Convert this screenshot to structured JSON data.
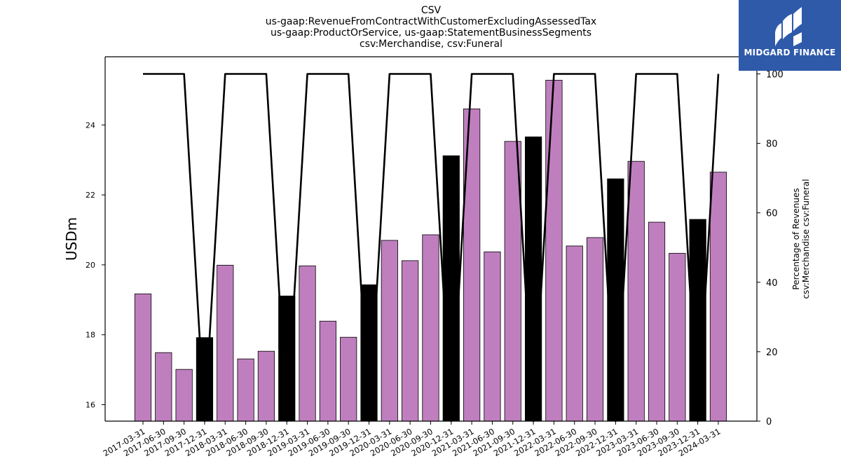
{
  "title_lines": [
    "CSV",
    "us-gaap:RevenueFromContractWithCustomerExcludingAssessedTax",
    "us-gaap:ProductOrService, us-gaap:StatementBusinessSegments",
    "csv:Merchandise, csv:Funeral"
  ],
  "logo": {
    "text": "MIDGARD FINANCE",
    "background": "#2f5aaa"
  },
  "chart_data": {
    "type": "bar",
    "categories": [
      "2017-03-31",
      "2017-06-30",
      "2017-09-30",
      "2017-12-31",
      "2018-03-31",
      "2018-06-30",
      "2018-09-30",
      "2018-12-31",
      "2019-03-31",
      "2019-06-30",
      "2019-09-30",
      "2019-12-31",
      "2020-03-31",
      "2020-06-30",
      "2020-09-30",
      "2020-12-31",
      "2021-03-31",
      "2021-06-30",
      "2021-09-30",
      "2021-12-31",
      "2022-03-31",
      "2022-06-30",
      "2022-09-30",
      "2022-12-31",
      "2023-03-31",
      "2023-06-30",
      "2023-09-30",
      "2023-12-31",
      "2024-03-31"
    ],
    "values": [
      19.17,
      17.49,
      17.01,
      17.92,
      19.99,
      17.31,
      17.53,
      19.11,
      19.97,
      18.39,
      17.93,
      19.43,
      20.7,
      20.12,
      20.86,
      23.12,
      24.46,
      20.37,
      23.53,
      23.66,
      25.28,
      20.54,
      20.78,
      22.46,
      22.96,
      21.22,
      20.33,
      21.3,
      22.65
    ],
    "bar_colors": [
      "#bf7fbf",
      "#bf7fbf",
      "#bf7fbf",
      "#000000",
      "#bf7fbf",
      "#bf7fbf",
      "#bf7fbf",
      "#000000",
      "#bf7fbf",
      "#bf7fbf",
      "#bf7fbf",
      "#000000",
      "#bf7fbf",
      "#bf7fbf",
      "#bf7fbf",
      "#000000",
      "#bf7fbf",
      "#bf7fbf",
      "#bf7fbf",
      "#000000",
      "#bf7fbf",
      "#bf7fbf",
      "#bf7fbf",
      "#000000",
      "#bf7fbf",
      "#bf7fbf",
      "#bf7fbf",
      "#000000",
      "#bf7fbf"
    ],
    "ylabel": "USDm",
    "ylim": [
      15.53,
      25.95
    ],
    "yticks": [
      16,
      18,
      20,
      22,
      24
    ],
    "line": {
      "values": [
        100,
        100,
        100,
        0,
        100,
        100,
        100,
        0,
        100,
        100,
        100,
        0,
        100,
        100,
        100,
        0,
        100,
        100,
        100,
        0,
        100,
        100,
        100,
        0,
        100,
        100,
        100,
        0,
        100
      ],
      "color": "#000000",
      "ylabel_lines": [
        "Percentage of Revenues",
        "csv:Merchandise csv:Funeral"
      ],
      "ylim": [
        0,
        100
      ],
      "yticks": [
        0,
        20,
        40,
        60,
        80,
        100
      ]
    },
    "grid": false,
    "legend": "none"
  }
}
